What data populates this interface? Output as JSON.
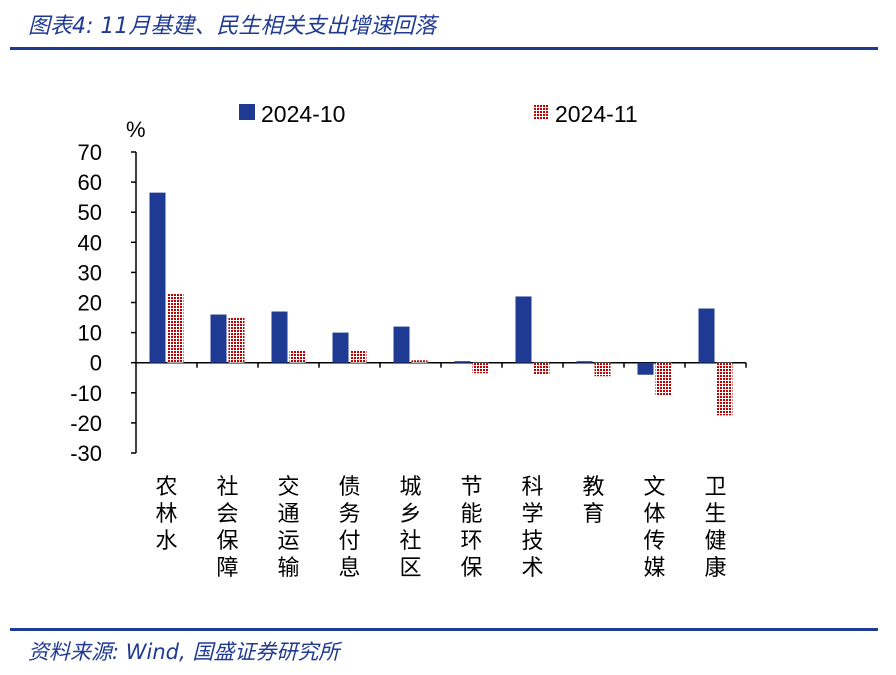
{
  "title": "图表4:  11月基建、民生相关支出增速回落",
  "source": "资料来源: Wind, 国盛证券研究所",
  "colors": {
    "title": "#1f3a93",
    "series_1": "#1f3a93",
    "series_2": "#c00000"
  },
  "chart_data": {
    "type": "bar",
    "unit": "%",
    "categories": [
      "农林水",
      "社会保障",
      "交通运输",
      "债务付息",
      "城乡社区",
      "节能环保",
      "科学技术",
      "教育",
      "文体传媒",
      "卫生健康"
    ],
    "series": [
      {
        "name": "2024-10",
        "values": [
          56.5,
          16.0,
          17.0,
          10.0,
          12.0,
          0.5,
          22.0,
          0.5,
          -4.0,
          18.0
        ]
      },
      {
        "name": "2024-11",
        "values": [
          23.0,
          15.0,
          4.0,
          4.0,
          0.8,
          -3.5,
          -4.0,
          -4.5,
          -11.0,
          -17.5
        ]
      }
    ],
    "ylim": [
      -30,
      70
    ],
    "yticks": [
      70,
      60,
      50,
      40,
      30,
      20,
      10,
      0,
      -10,
      -20,
      -30
    ],
    "legend": "top",
    "grid": false
  }
}
